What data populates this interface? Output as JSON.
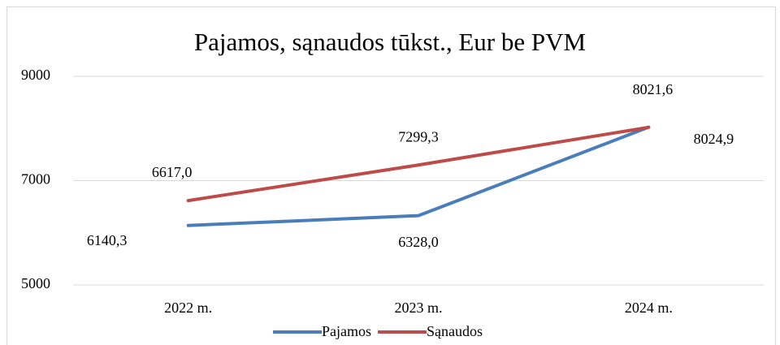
{
  "chart_data": {
    "type": "line",
    "title": "Pajamos, sąnaudos tūkst.,  Eur be PVM",
    "categories": [
      "2022 m.",
      "2023 m.",
      "2024 m."
    ],
    "series": [
      {
        "name": "Pajamos",
        "color": "#4a7ebb",
        "values": [
          6140.3,
          6328.0,
          8024.9
        ],
        "value_labels": [
          "6140,3",
          "6328,0",
          "8024,9"
        ]
      },
      {
        "name": "Sąnaudos",
        "color": "#be4b48",
        "values": [
          6617.0,
          7299.3,
          8021.6
        ],
        "value_labels": [
          "6617,0",
          "7299,3",
          "8021,6"
        ]
      }
    ],
    "ylim": [
      5000,
      9000
    ],
    "yticks": [
      5000,
      7000,
      9000
    ],
    "grid": true,
    "legend": "bottom"
  }
}
